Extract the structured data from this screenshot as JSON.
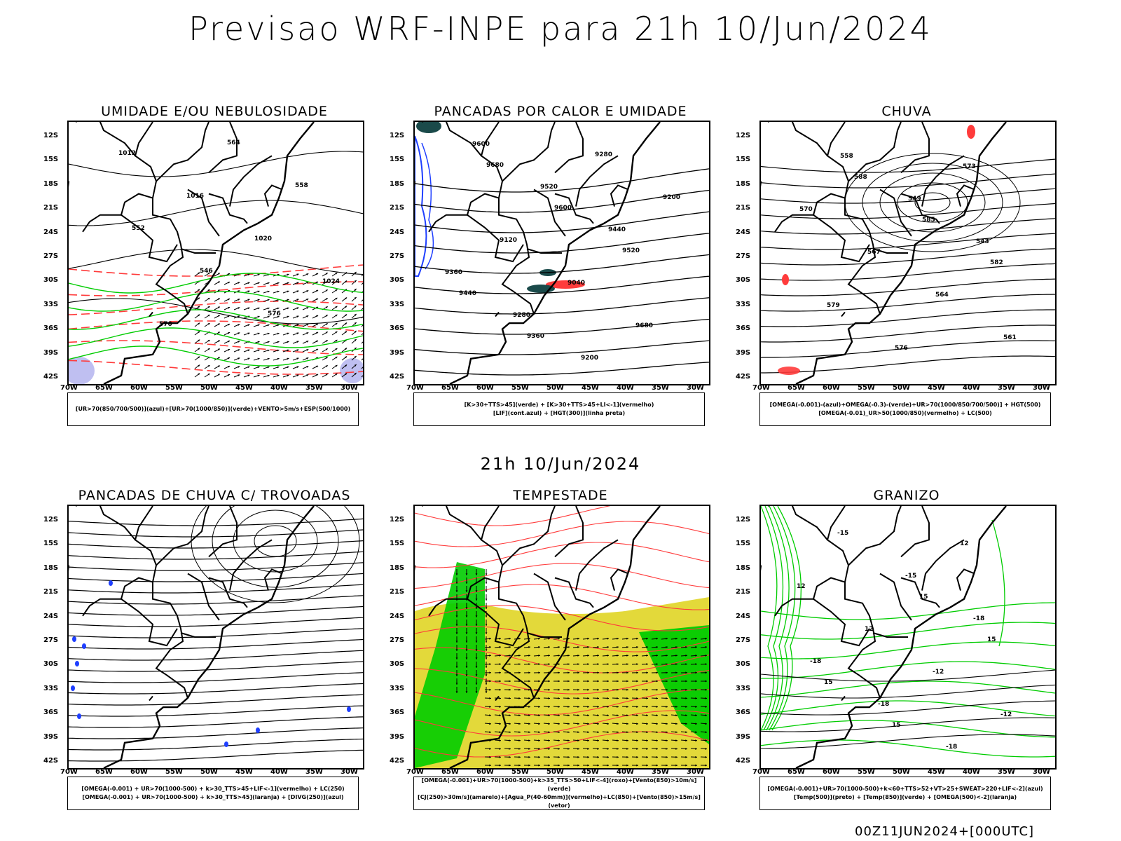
{
  "title": "Previsao WRF-INPE  para 21h 10/Jun/2024",
  "mid_time": "21h 10/Jun/2024",
  "run_stamp": "00Z11JUN2024+[000UTC]",
  "axes": {
    "lat_labels": [
      "12S",
      "15S",
      "18S",
      "21S",
      "24S",
      "27S",
      "30S",
      "33S",
      "36S",
      "39S",
      "42S"
    ],
    "lon_labels": [
      "70W",
      "65W",
      "60W",
      "55W",
      "50W",
      "45W",
      "40W",
      "35W",
      "30W"
    ]
  },
  "colors": {
    "red": "#ff3b3b",
    "green": "#00cc00",
    "blue": "#1f3fff",
    "teal": "#1a4a4a",
    "yellow": "#e3d93a",
    "lavender": "#b8b8f0"
  },
  "panels": [
    {
      "title": "UMIDADE E/OU NEBULOSIDADE",
      "legend": [
        "[UR>70(850/700/500)](azul)+[UR>70(1000/850)](verde)+VENTO>5m/s+ESP(500/1000)"
      ],
      "contour_labels": [
        "1012",
        "1016",
        "1020",
        "1024",
        "570",
        "564",
        "558",
        "552",
        "546",
        "576"
      ]
    },
    {
      "title": "PANCADAS POR CALOR E UMIDADE",
      "legend": [
        "[K>30+TTS>45](verde) + [K>30+TTS>45+LI<-1](vermelho)",
        "[LIF](cont.azul) + [HGT(300)](linha preta)"
      ],
      "contour_labels": [
        "9680",
        "9600",
        "9520",
        "9440",
        "9360",
        "9280",
        "9200",
        "9120",
        "9040",
        "9680",
        "9600",
        "9520",
        "9440",
        "9360",
        "9280",
        "9200"
      ]
    },
    {
      "title": "CHUVA",
      "legend": [
        "[OMEGA(-0.001)-(azul)+OMEGA(-0.3)-(verde)+UR>70(1000/850/700/500)] + HGT(500)",
        "[OMEGA(-0.01)_UR>50(1000/850)(vermelho) + LC(500)"
      ],
      "contour_labels": [
        "588",
        "585",
        "582",
        "579",
        "576",
        "573",
        "570",
        "567",
        "564",
        "561",
        "558",
        "549",
        "543"
      ]
    },
    {
      "title": "PANCADAS DE CHUVA C/ TROVOADAS",
      "legend": [
        "[OMEGA(-0.001) + UR>70(1000-500) + k>30_TTS>45+LIF<-1](vermelho) + LC(250)",
        "[OMEGA(-0.001) + UR>70(1000-500) + k>30_TTS>45](laranja) + [DIVG(250)](azul)"
      ],
      "contour_labels": []
    },
    {
      "title": "TEMPESTADE",
      "legend": [
        "[OMEGA(-0.001)+UR>70(1000-500)+k>35_TTS>50+LIF<-4](roxo)+[Vento(850)>10m/s](verde)",
        "[CJ(250)>30m/s](amarelo)+[Agua_P(40-60mm)](vermelho)+LC(850)+[Vento(850)>15m/s](vetor)"
      ],
      "contour_labels": []
    },
    {
      "title": "GRANIZO",
      "legend": [
        "[OMEGA(-0.001)+UR>70(1000-500)+k<60+TTS>52+VT>25+SWEAT>220+LIF<-2](azul)",
        "[Temp(500)](preto) + [Temp(850)](verde) + [OMEGA(500)<-2](laranja)"
      ],
      "contour_labels": [
        "15",
        "15",
        "15",
        "15",
        "12",
        "12",
        "12",
        "-12",
        "-12",
        "-15",
        "-15",
        "-18",
        "-18",
        "-18",
        "-18"
      ]
    }
  ]
}
